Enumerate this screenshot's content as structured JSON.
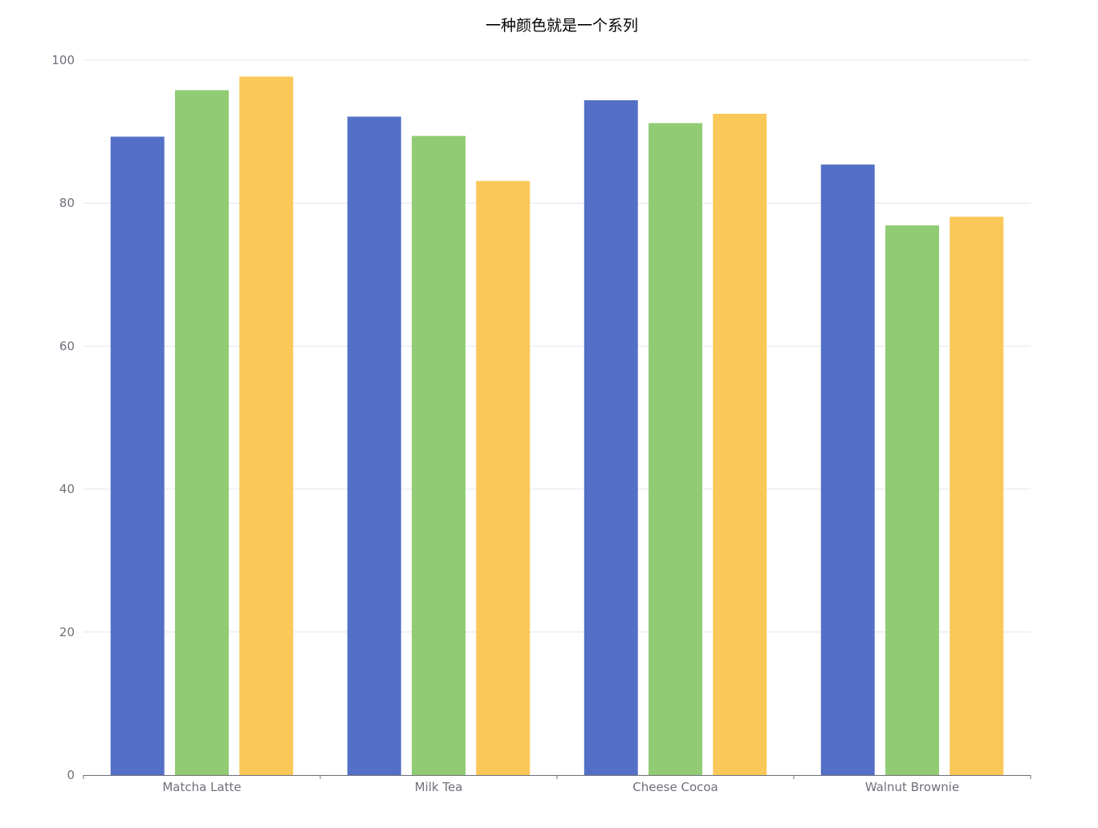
{
  "chart_data": {
    "type": "bar",
    "title": "一种颜色就是一个系列",
    "categories": [
      "Matcha Latte",
      "Milk Tea",
      "Cheese Cocoa",
      "Walnut Brownie"
    ],
    "series": [
      {
        "values": [
          89.3,
          92.1,
          94.4,
          85.4
        ],
        "color": "#5470c6"
      },
      {
        "values": [
          95.8,
          89.4,
          91.2,
          76.9
        ],
        "color": "#91cc75"
      },
      {
        "values": [
          97.7,
          83.1,
          92.5,
          78.1
        ],
        "color": "#fac858"
      }
    ],
    "ylim": [
      0,
      100
    ],
    "yticks": [
      0,
      20,
      40,
      60,
      80,
      100
    ],
    "grid": true,
    "legend": "none",
    "colors": {
      "text": "#6e7079",
      "grid": "#e0e6f1",
      "axis": "#6e7079",
      "title": "#000000"
    }
  }
}
